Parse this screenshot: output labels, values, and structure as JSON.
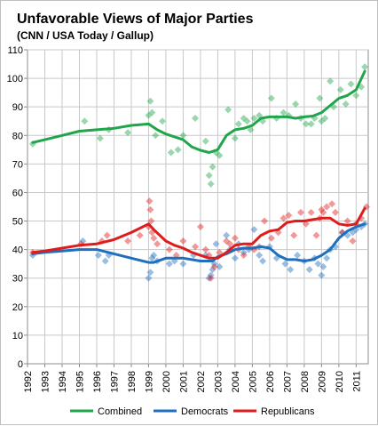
{
  "chart_data": {
    "type": "scatter",
    "title": "Unfavorable Views of Major Parties",
    "subtitle": "(CNN / USA Today / Gallup)",
    "xlabel": "",
    "ylabel": "",
    "xlim": [
      1992,
      2011.7
    ],
    "ylim": [
      0,
      110
    ],
    "yticks": [
      0,
      10,
      20,
      30,
      40,
      50,
      60,
      70,
      80,
      90,
      100,
      110
    ],
    "xticks": [
      "1992",
      "1993",
      "1994",
      "1995",
      "1996",
      "1997",
      "1998",
      "1999",
      "2000",
      "2001",
      "2002",
      "2003",
      "2004",
      "2005",
      "2006",
      "2007",
      "2008",
      "2009",
      "2010",
      "2011"
    ],
    "grid": true,
    "legend_position": "bottom",
    "series": [
      {
        "name": "Combined",
        "color": "#1fa64a",
        "trend": [
          [
            1992.3,
            77.5
          ],
          [
            1993,
            78.5
          ],
          [
            1994,
            80
          ],
          [
            1995,
            81.5
          ],
          [
            1996,
            82
          ],
          [
            1997,
            82.5
          ],
          [
            1998,
            83.5
          ],
          [
            1999,
            84
          ],
          [
            1999.5,
            82
          ],
          [
            2000,
            80.5
          ],
          [
            2001,
            78.5
          ],
          [
            2001.5,
            76
          ],
          [
            2002,
            74.8
          ],
          [
            2002.5,
            74
          ],
          [
            2003,
            75
          ],
          [
            2003.5,
            80
          ],
          [
            2004,
            82
          ],
          [
            2004.5,
            82.5
          ],
          [
            2005,
            83.5
          ],
          [
            2005.5,
            86
          ],
          [
            2006,
            86.5
          ],
          [
            2007,
            86.5
          ],
          [
            2007.5,
            86
          ],
          [
            2008,
            86.5
          ],
          [
            2008.5,
            86.8
          ],
          [
            2009,
            88
          ],
          [
            2009.5,
            90.5
          ],
          [
            2010,
            93
          ],
          [
            2010.5,
            94
          ],
          [
            2011,
            96
          ],
          [
            2011.5,
            102.5
          ]
        ],
        "points": [
          [
            1992.3,
            77
          ],
          [
            1995.3,
            85
          ],
          [
            1996.2,
            79
          ],
          [
            1996.7,
            82
          ],
          [
            1997.8,
            81
          ],
          [
            1999,
            87
          ],
          [
            1999.1,
            92
          ],
          [
            1999.2,
            88
          ],
          [
            1999.4,
            80
          ],
          [
            1999.8,
            85
          ],
          [
            2000.3,
            74
          ],
          [
            2000.7,
            75
          ],
          [
            2001,
            80
          ],
          [
            2001.7,
            86
          ],
          [
            2002.3,
            78
          ],
          [
            2002.5,
            66
          ],
          [
            2002.6,
            63
          ],
          [
            2002.7,
            69
          ],
          [
            2002.9,
            74
          ],
          [
            2003.1,
            73
          ],
          [
            2003.6,
            89
          ],
          [
            2004,
            79
          ],
          [
            2004.2,
            84
          ],
          [
            2004.5,
            86
          ],
          [
            2004.7,
            85
          ],
          [
            2004.9,
            82
          ],
          [
            2005.1,
            86
          ],
          [
            2005.4,
            87
          ],
          [
            2005.6,
            85
          ],
          [
            2006.1,
            93
          ],
          [
            2006.4,
            86
          ],
          [
            2006.8,
            88
          ],
          [
            2007.1,
            87
          ],
          [
            2007.5,
            91
          ],
          [
            2007.8,
            86
          ],
          [
            2008.1,
            84
          ],
          [
            2008.4,
            84
          ],
          [
            2008.6,
            86
          ],
          [
            2008.9,
            93
          ],
          [
            2009,
            85
          ],
          [
            2009.2,
            86
          ],
          [
            2009.5,
            99
          ],
          [
            2009.7,
            90
          ],
          [
            2010.1,
            96
          ],
          [
            2010.4,
            91
          ],
          [
            2010.7,
            98
          ],
          [
            2011,
            94
          ],
          [
            2011.3,
            97
          ],
          [
            2011.5,
            104
          ]
        ]
      },
      {
        "name": "Democrats",
        "color": "#1f6fbf",
        "trend": [
          [
            1992.3,
            38.5
          ],
          [
            1993,
            39
          ],
          [
            1994,
            39.5
          ],
          [
            1995,
            40
          ],
          [
            1996,
            40
          ],
          [
            1997,
            38.5
          ],
          [
            1998,
            37
          ],
          [
            1999,
            35.5
          ],
          [
            1999.3,
            35.5
          ],
          [
            2000,
            37
          ],
          [
            2001,
            37
          ],
          [
            2002,
            36
          ],
          [
            2002.7,
            36
          ],
          [
            2003,
            37.5
          ],
          [
            2003.5,
            38.5
          ],
          [
            2004,
            40
          ],
          [
            2004.5,
            40.5
          ],
          [
            2005,
            40.5
          ],
          [
            2005.5,
            41
          ],
          [
            2006,
            40.5
          ],
          [
            2006.5,
            38
          ],
          [
            2007,
            36.5
          ],
          [
            2007.5,
            36.5
          ],
          [
            2008,
            36
          ],
          [
            2008.5,
            36.5
          ],
          [
            2009,
            38
          ],
          [
            2009.5,
            40
          ],
          [
            2010,
            44
          ],
          [
            2010.5,
            46.5
          ],
          [
            2011,
            48
          ],
          [
            2011.5,
            49
          ]
        ],
        "points": [
          [
            1992.3,
            38
          ],
          [
            1995.2,
            43
          ],
          [
            1996.1,
            38
          ],
          [
            1996.5,
            36
          ],
          [
            1996.7,
            38
          ],
          [
            1999,
            30
          ],
          [
            1999.1,
            32
          ],
          [
            1999.2,
            37
          ],
          [
            1999.3,
            38
          ],
          [
            1999.5,
            36
          ],
          [
            2000.2,
            35
          ],
          [
            2000.5,
            36
          ],
          [
            2001,
            35
          ],
          [
            2001.6,
            38
          ],
          [
            2002.3,
            38
          ],
          [
            2002.5,
            30
          ],
          [
            2002.6,
            31
          ],
          [
            2002.7,
            33
          ],
          [
            2002.8,
            35
          ],
          [
            2002.9,
            42
          ],
          [
            2003.1,
            34
          ],
          [
            2003.5,
            45
          ],
          [
            2003.7,
            40
          ],
          [
            2004,
            37
          ],
          [
            2004.2,
            42
          ],
          [
            2004.5,
            39
          ],
          [
            2004.8,
            40
          ],
          [
            2005.1,
            47
          ],
          [
            2005.4,
            38
          ],
          [
            2005.6,
            36
          ],
          [
            2006,
            41
          ],
          [
            2006.4,
            37
          ],
          [
            2006.9,
            35
          ],
          [
            2007.2,
            33
          ],
          [
            2007.6,
            38
          ],
          [
            2008,
            36
          ],
          [
            2008.3,
            33
          ],
          [
            2008.6,
            37
          ],
          [
            2008.8,
            35
          ],
          [
            2009,
            31
          ],
          [
            2009.1,
            34
          ],
          [
            2009.3,
            37
          ],
          [
            2009.5,
            40
          ],
          [
            2009.8,
            41
          ],
          [
            2010.2,
            46
          ],
          [
            2010.5,
            45
          ],
          [
            2010.8,
            46
          ],
          [
            2011,
            47
          ],
          [
            2011.3,
            48
          ],
          [
            2011.5,
            49
          ]
        ]
      },
      {
        "name": "Republicans",
        "color": "#e01b1b",
        "trend": [
          [
            1992.3,
            39
          ],
          [
            1993,
            39.5
          ],
          [
            1994,
            40.5
          ],
          [
            1995,
            41.5
          ],
          [
            1996,
            42
          ],
          [
            1997,
            43.5
          ],
          [
            1998,
            46
          ],
          [
            1999,
            49
          ],
          [
            1999.3,
            47
          ],
          [
            2000,
            43
          ],
          [
            2000.5,
            41.5
          ],
          [
            2001,
            40.5
          ],
          [
            2001.5,
            39
          ],
          [
            2002,
            38
          ],
          [
            2002.5,
            37
          ],
          [
            2003,
            37
          ],
          [
            2003.5,
            39
          ],
          [
            2004,
            41.5
          ],
          [
            2004.5,
            42
          ],
          [
            2005,
            42
          ],
          [
            2005.5,
            45
          ],
          [
            2006,
            46.5
          ],
          [
            2006.5,
            47
          ],
          [
            2007,
            49.5
          ],
          [
            2007.5,
            50
          ],
          [
            2008,
            50
          ],
          [
            2008.5,
            50.5
          ],
          [
            2009,
            51
          ],
          [
            2009.5,
            51
          ],
          [
            2010,
            49
          ],
          [
            2010.5,
            48.5
          ],
          [
            2011,
            49
          ],
          [
            2011.5,
            54.5
          ]
        ],
        "points": [
          [
            1992.3,
            39
          ],
          [
            1995.1,
            42
          ],
          [
            1996.3,
            43
          ],
          [
            1996.6,
            45
          ],
          [
            1997.8,
            43
          ],
          [
            1998.5,
            45
          ],
          [
            1999,
            48
          ],
          [
            1999.05,
            57
          ],
          [
            1999.1,
            54
          ],
          [
            1999.15,
            50
          ],
          [
            1999.2,
            46
          ],
          [
            1999.3,
            44
          ],
          [
            1999.5,
            42
          ],
          [
            2000.2,
            40
          ],
          [
            2000.6,
            38
          ],
          [
            2001,
            43
          ],
          [
            2001.7,
            41
          ],
          [
            2002,
            48
          ],
          [
            2002.3,
            40
          ],
          [
            2002.5,
            38
          ],
          [
            2002.6,
            30
          ],
          [
            2002.8,
            34
          ],
          [
            2003.1,
            39
          ],
          [
            2003.5,
            43
          ],
          [
            2003.7,
            42
          ],
          [
            2004,
            44
          ],
          [
            2004.2,
            40
          ],
          [
            2004.5,
            38
          ],
          [
            2004.8,
            41
          ],
          [
            2005.1,
            40
          ],
          [
            2005.4,
            41
          ],
          [
            2005.7,
            50
          ],
          [
            2006.1,
            44
          ],
          [
            2006.5,
            46
          ],
          [
            2006.8,
            51
          ],
          [
            2007.1,
            52
          ],
          [
            2007.4,
            45
          ],
          [
            2007.8,
            53
          ],
          [
            2008.1,
            49
          ],
          [
            2008.4,
            53
          ],
          [
            2008.7,
            45
          ],
          [
            2008.9,
            51
          ],
          [
            2009,
            54
          ],
          [
            2009.1,
            53
          ],
          [
            2009.3,
            55
          ],
          [
            2009.6,
            56
          ],
          [
            2009.8,
            53
          ],
          [
            2010.2,
            46
          ],
          [
            2010.5,
            50
          ],
          [
            2010.8,
            43
          ],
          [
            2011,
            49
          ],
          [
            2011.3,
            51
          ],
          [
            2011.6,
            55
          ]
        ]
      }
    ]
  }
}
